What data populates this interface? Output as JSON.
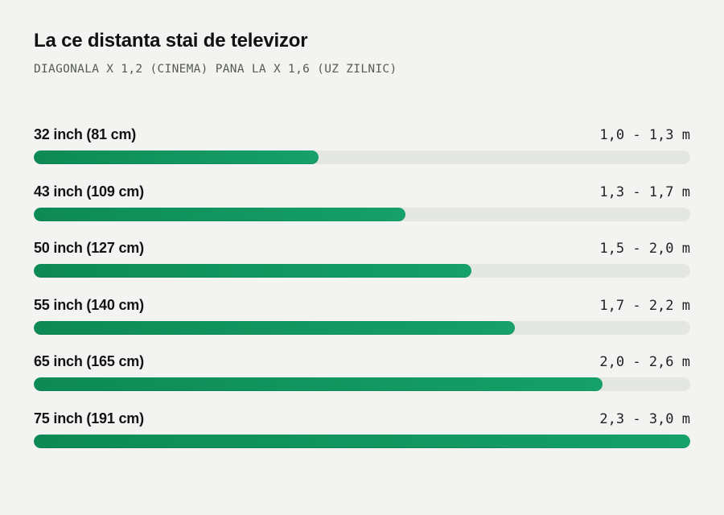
{
  "title": "La ce distanta stai de televizor",
  "subtitle": "DIAGONALA X 1,2 (CINEMA) PANA LA X 1,6 (UZ ZILNIC)",
  "chart_data": {
    "type": "bar",
    "orientation": "horizontal",
    "categories": [
      "32 inch (81 cm)",
      "43 inch (109 cm)",
      "50 inch (127 cm)",
      "55 inch (140 cm)",
      "65 inch (165 cm)",
      "75 inch (191 cm)"
    ],
    "range_labels": [
      "1,0 - 1,3 m",
      "1,3 - 1,7 m",
      "1,5 - 2,0 m",
      "1,7 - 2,2 m",
      "2,0 - 2,6 m",
      "2,3 - 3,0 m"
    ],
    "values": [
      1.3,
      1.7,
      2.0,
      2.2,
      2.6,
      3.0
    ],
    "xlim": [
      0,
      3.0
    ],
    "grid": false,
    "colors": {
      "bar_fill_start": "#0d8a55",
      "bar_fill_end": "#16a06a",
      "track": "#e4e6e2",
      "background": "#f3f4f1"
    }
  }
}
